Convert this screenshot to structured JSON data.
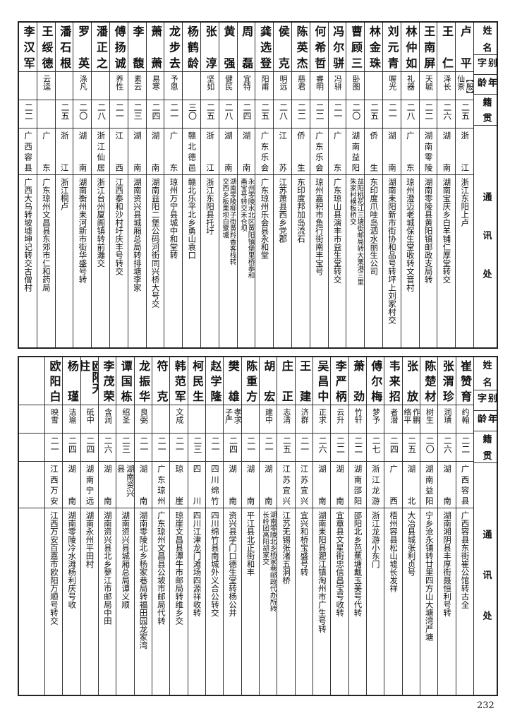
{
  "headers": {
    "name": "姓名",
    "alias": "别字",
    "age": "年龄",
    "origin": "籍贯",
    "address": "通  讯  处"
  },
  "top_table": [
    {
      "name": "卢平",
      "alias": "【殷】仙柰",
      "age": "二五",
      "origin": "浙江",
      "address": "浙江东阳上卢"
    },
    {
      "name": "王仁",
      "alias": "泽长",
      "age": "二六",
      "origin": "湖南",
      "address": "湖南宝庆乡白羊铺仁厚堂转交"
    },
    {
      "name": "王南屏",
      "alias": "天毓",
      "age": "二二",
      "origin": "湖南零陵",
      "address": "湖南零陵县黄阳镇邮政支局转"
    },
    {
      "name": "林仲如",
      "alias": "礼器",
      "age": "二八",
      "origin": "广东",
      "address": "琼州澄迈老城保生堂收转文音村"
    },
    {
      "name": "刘元青",
      "alias": "喔光",
      "age": "二一",
      "origin": "湖南",
      "address": "湖南耒阳新市街协和品号转坪上刘家村交"
    },
    {
      "name": "林金珠",
      "alias": "",
      "age": "二五",
      "origin": "侨生",
      "address": "东印度爪哇岛泗水丽生公司"
    },
    {
      "name": "曹顾三",
      "alias": "卧图",
      "age": "二〇",
      "origin": "湖南益阳",
      "address": "益阳桃花江三塘街邮局转大栗港三里\n朱家村横板桥交"
    },
    {
      "name": "冯尔骈",
      "alias": "冯骈",
      "age": "二一",
      "origin": "广东",
      "address": "广东琼山县演丰市益生堂转交"
    },
    {
      "name": "何希哲",
      "alias": "睿明",
      "age": "二二",
      "origin": "广东乐会",
      "address": "琼州嘉积市鱼行街南丰宝号"
    },
    {
      "name": "陈英杰",
      "alias": "慈君",
      "age": "二二",
      "origin": "侨生",
      "address": "东印度邦加岛流石"
    },
    {
      "name": "侯克",
      "alias": "明远",
      "age": "二八",
      "origin": "江苏",
      "address": "江苏萧县西乡党郡"
    },
    {
      "name": "龚选登",
      "alias": "阳甫",
      "age": "二五",
      "origin": "广东乐会",
      "address": "广东琼州乐会县永和堂"
    },
    {
      "name": "周磊",
      "alias": "宜特",
      "age": "二四",
      "origin": "湖南",
      "address": "永州零陵水北区黄阳镇堡里桥泰和\n斋宝号转交禾仓坝"
    },
    {
      "name": "黄强",
      "alias": "健民",
      "age": "二八",
      "origin": "湖南",
      "address": "湖南零陵柳子街黄羚香客栈转\n交西乡板栗坝白鹭塘"
    },
    {
      "name": "张淳",
      "alias": "坚如",
      "age": "二五",
      "origin": "浙江",
      "address": "浙江东阳县托圩"
    },
    {
      "name": "杨鹤龄",
      "alias": "",
      "age": "三〇",
      "origin": "赣北德邑",
      "address": "赣北乐平北乡勇山袁口"
    },
    {
      "name": "龙步去",
      "alias": "予恩",
      "age": "二一",
      "origin": "广东",
      "address": "琼州万宁县城中和堂转"
    },
    {
      "name": "萧萧",
      "alias": "易寒",
      "age": "二四",
      "origin": "湖南",
      "address": "湖南益阳二堡公码河街同兴桥大号交"
    },
    {
      "name": "李馥",
      "alias": "素云",
      "age": "二三",
      "origin": "湖南",
      "address": "湖南资兴县城厢总局转排塘李家"
    },
    {
      "name": "傅扬诚",
      "alias": "养性",
      "age": "二一",
      "origin": "江西",
      "address": "江西泰和沙村圩庆丰号转交"
    },
    {
      "name": "潘正之",
      "alias": "",
      "age": "二八",
      "origin": "浙江仙居",
      "address": "浙江台州厦阁镇转前灕交"
    },
    {
      "name": "罗英",
      "alias": "涤凡",
      "age": "二〇",
      "origin": "湖南",
      "address": "湖南衡州耒河新市街华盛号转"
    },
    {
      "name": "潘石根",
      "alias": "",
      "age": "二五",
      "origin": "浙江",
      "address": "浙江桐卢"
    },
    {
      "name": "王绥德",
      "alias": "云逵",
      "age": "",
      "origin": "广东",
      "address": "广东琼州文昌县东郊市仁和药局"
    },
    {
      "name": "李汉军",
      "alias": "",
      "age": "二二",
      "origin": "广西容县",
      "address": "广西大乌转坡墟坤记转交古僧村"
    }
  ],
  "bottom_table": [
    {
      "name": "崔赞育",
      "alias": "约翰",
      "age": "二二",
      "origin": "广西容县",
      "address": "广西容县东街崔公馆转古全"
    },
    {
      "name": "张渭珍",
      "alias": "润璜",
      "age": "二六",
      "origin": "湖南",
      "address": "湖南湘阴县丰厚街聂恒利号转"
    },
    {
      "name": "陈楚材",
      "alias": "树生",
      "age": "二〇",
      "origin": "湖南益阳",
      "address": "宁乡沧永铺转廿里四方山大塘湾严塘"
    },
    {
      "name": "张放",
      "alias": "作鹏 络平",
      "age": "二五",
      "origin": "湖北",
      "address": "大冶县城张利贞号"
    },
    {
      "name": "韦来招",
      "alias": "者潜",
      "age": "二四",
      "origin": "广西",
      "address": "梧州容县松山墟长发祥"
    },
    {
      "name": "傅尔梅",
      "alias": "梦予",
      "age": "二七",
      "origin": "浙江龙游",
      "address": "浙江龙游小东门"
    },
    {
      "name": "萧劲",
      "alias": "竹轩",
      "age": "二二",
      "origin": "湖南邵阳",
      "address": "邵阳北乡芭蕉塘戴玉美号代转"
    },
    {
      "name": "李严柄",
      "alias": "云升",
      "age": "二二",
      "origin": "湖南",
      "address": "宜章县文星街忠信昌宝号收转"
    },
    {
      "name": "吴昌中",
      "alias": "正求",
      "age": "二六",
      "origin": "湖南",
      "address": "湖南耒阳县淝江镇淘州市广生号转"
    },
    {
      "name": "王建",
      "alias": "济群",
      "age": "二一",
      "origin": "江苏宜兴",
      "address": "宜兴和桥宝盛号转"
    },
    {
      "name": "庄正",
      "alias": "志清",
      "age": "二五",
      "origin": "江苏宜兴",
      "address": "江苏无锡张渚五洞桥"
    },
    {
      "name": "胡宏",
      "alias": "建中",
      "age": "二一",
      "origin": "湖南",
      "address": "湖南零陵北乡杨家巷邮政代办所转\n长岭团高阳胡家交"
    },
    {
      "name": "陈重方",
      "alias": "",
      "age": "二一",
      "origin": "湖南",
      "address": "平江县北正街和丰"
    },
    {
      "name": "樊雄",
      "alias": "孝求 子严",
      "age": "二四",
      "origin": "湖南",
      "address": "资兴县学门口德生堂转杨公井"
    },
    {
      "name": "赵学隆",
      "alias": "",
      "age": "二一",
      "origin": "四川绵竹",
      "address": "四川绵竹县南城外义合公转交"
    },
    {
      "name": "柯民生",
      "alias": "",
      "age": "二三",
      "origin": "四川",
      "address": "四川江津龙门滩场四源祥收转"
    },
    {
      "name": "韩范军",
      "alias": "文成",
      "age": "二一",
      "origin": "琼崖",
      "address": "琼崖文昌县潭牛市邮局转维乡交"
    },
    {
      "name": "符克",
      "alias": "",
      "age": "二一",
      "origin": "广东琼州",
      "address": "广东琼州文昌县公坡市邮局代转"
    },
    {
      "name": "龙振华",
      "alias": "良弼",
      "age": "二一",
      "origin": "湖南",
      "address": "湖南零陵北乡杨家巷局转福田园龙家湾"
    },
    {
      "name": "谭国栋",
      "alias": "绍圣",
      "age": "二三",
      "origin": "湖南资兴县",
      "address": "湖南资兴县城厢总局谭义顺"
    },
    {
      "name": "李茂荣",
      "alias": "含润",
      "age": "二六",
      "origin": "湖南",
      "address": "湖南资兴县北乡蓼江市邮局中田"
    },
    {
      "name": "欧阳天柱",
      "alias": "砥中",
      "age": "二四",
      "origin": "湖南宁远",
      "address": "湖南永州平田村"
    },
    {
      "name": "杨瑾",
      "alias": "洁瑜",
      "age": "二四",
      "origin": "湖南",
      "address": "湖南零陵冷水滩杨利庆号收"
    },
    {
      "name": "欧阳白",
      "alias": "映雪",
      "age": "二一",
      "origin": "江西万安",
      "address": "江西万安百嘉市欧阳万顺号转交"
    }
  ],
  "page_number": "232"
}
